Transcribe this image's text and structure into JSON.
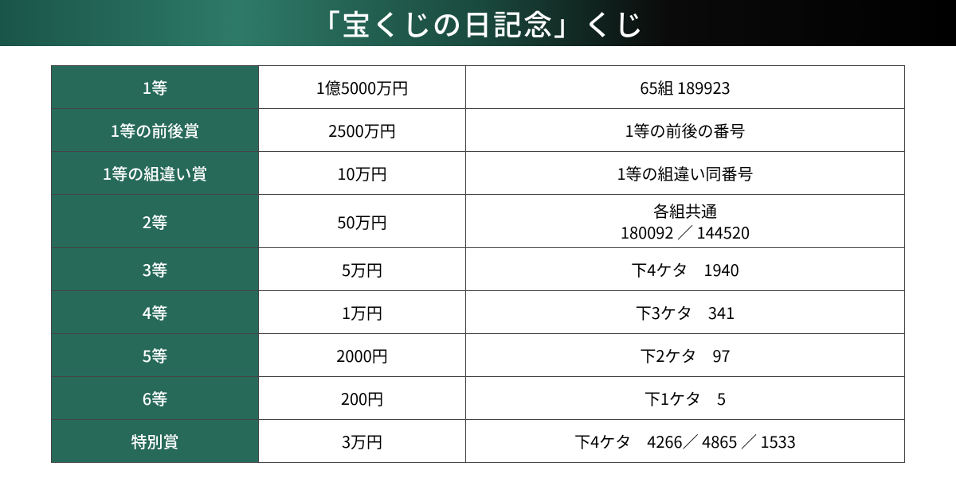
{
  "header": {
    "title": "「宝くじの日記念」くじ"
  },
  "table": {
    "colors": {
      "header_gradient_start": "#1a5549",
      "header_gradient_mid1": "#2e7a68",
      "header_gradient_mid2": "#1a4a3e",
      "header_gradient_end": "#000000",
      "prize_name_bg": "#276a5a",
      "prize_name_fg": "#ffffff",
      "cell_bg": "#ffffff",
      "cell_fg": "#000000",
      "border": "#444444"
    },
    "column_widths": {
      "prize_name": 260,
      "prize_amount": 260
    },
    "font_size": 20,
    "rows": [
      {
        "name": "1等",
        "amount": "1億5000万円",
        "number": "65組 189923",
        "two_line": false
      },
      {
        "name": "1等の前後賞",
        "amount": "2500万円",
        "number": "1等の前後の番号",
        "two_line": false
      },
      {
        "name": "1等の組違い賞",
        "amount": "10万円",
        "number": "1等の組違い同番号",
        "two_line": false
      },
      {
        "name": "2等",
        "amount": "50万円",
        "number": "各組共通\n180092 ／ 144520",
        "two_line": true
      },
      {
        "name": "3等",
        "amount": "5万円",
        "number": "下4ケタ　1940",
        "two_line": false
      },
      {
        "name": "4等",
        "amount": "1万円",
        "number": "下3ケタ　341",
        "two_line": false
      },
      {
        "name": "5等",
        "amount": "2000円",
        "number": "下2ケタ　97",
        "two_line": false
      },
      {
        "name": "6等",
        "amount": "200円",
        "number": "下1ケタ　5",
        "two_line": false
      },
      {
        "name": "特別賞",
        "amount": "3万円",
        "number": "下4ケタ　4266／ 4865 ／ 1533",
        "two_line": false
      }
    ]
  }
}
